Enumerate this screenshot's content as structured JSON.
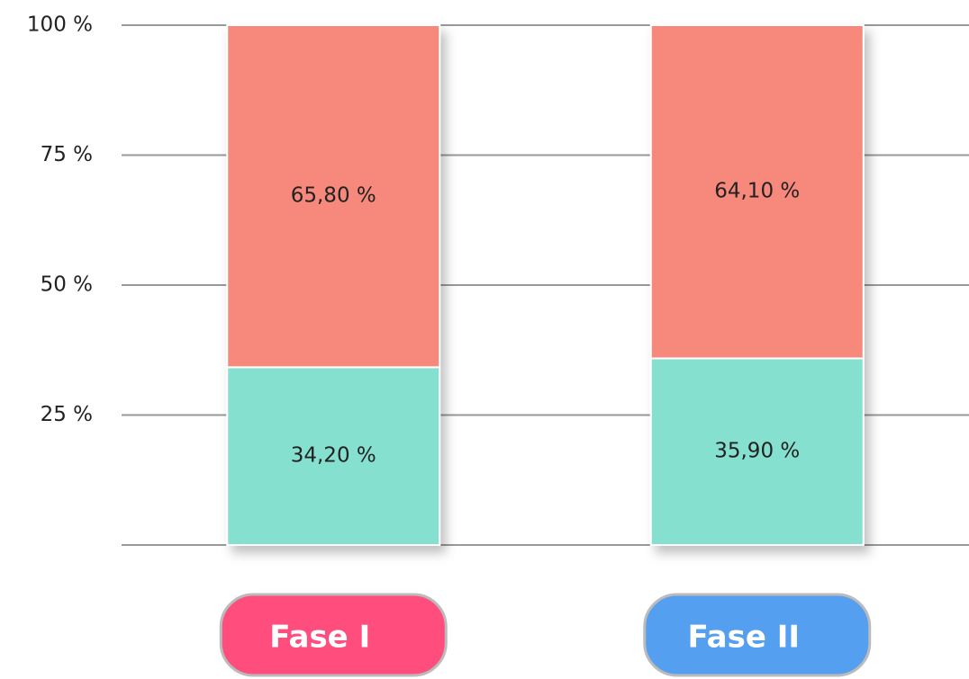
{
  "chart_data": {
    "type": "stacked_bar",
    "categories": [
      "Fase I",
      "Fase II"
    ],
    "category_colors": [
      "#ff4d7d",
      "#559ff0"
    ],
    "series": [
      {
        "color": "#86e0cf",
        "values": [
          34.2,
          35.9
        ],
        "value_labels": [
          "34,20 %",
          "35,90 %"
        ]
      },
      {
        "color": "#f7897b",
        "values": [
          65.8,
          64.1
        ],
        "value_labels": [
          "65,80 %",
          "64,10 %"
        ]
      }
    ],
    "ylim": [
      0,
      100
    ],
    "yticks": [
      {
        "value": 25,
        "label": "25 %"
      },
      {
        "value": 50,
        "label": "50 %"
      },
      {
        "value": 75,
        "label": "75 %"
      },
      {
        "value": 100,
        "label": "100 %"
      }
    ],
    "grid": true
  }
}
